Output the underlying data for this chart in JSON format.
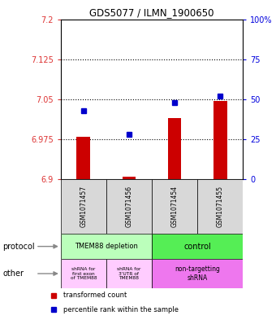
{
  "title": "GDS5077 / ILMN_1900650",
  "samples": [
    "GSM1071457",
    "GSM1071456",
    "GSM1071454",
    "GSM1071455"
  ],
  "red_values": [
    6.98,
    6.905,
    7.015,
    7.047
  ],
  "blue_percentile": [
    43,
    28,
    48,
    52
  ],
  "ylim_left": [
    6.9,
    7.2
  ],
  "ylim_right": [
    0,
    100
  ],
  "yticks_left": [
    6.9,
    6.975,
    7.05,
    7.125,
    7.2
  ],
  "yticks_right": [
    0,
    25,
    50,
    75,
    100
  ],
  "ytick_labels_left": [
    "6.9",
    "6.975",
    "7.05",
    "7.125",
    "7.2"
  ],
  "ytick_labels_right": [
    "0",
    "25",
    "50",
    "75",
    "100%"
  ],
  "hlines": [
    6.975,
    7.05,
    7.125
  ],
  "bar_color": "#cc0000",
  "dot_color": "#0000cc",
  "bar_width": 0.3,
  "protocol_labels": [
    "TMEM88 depletion",
    "control"
  ],
  "other_labels": [
    "shRNA for\nfirst exon\nof TMEM88",
    "shRNA for\n3'UTR of\nTMEM88",
    "non-targetting\nshRNA"
  ],
  "protocol_color_left": "#bbffbb",
  "protocol_color_right": "#55ee55",
  "other_color_left": "#ffccff",
  "other_color_right": "#ee77ee",
  "left_label_protocol": "protocol",
  "left_label_other": "other",
  "legend_red": "transformed count",
  "legend_blue": "percentile rank within the sample",
  "sample_bg": "#d8d8d8",
  "title_fontsize": 8.5
}
